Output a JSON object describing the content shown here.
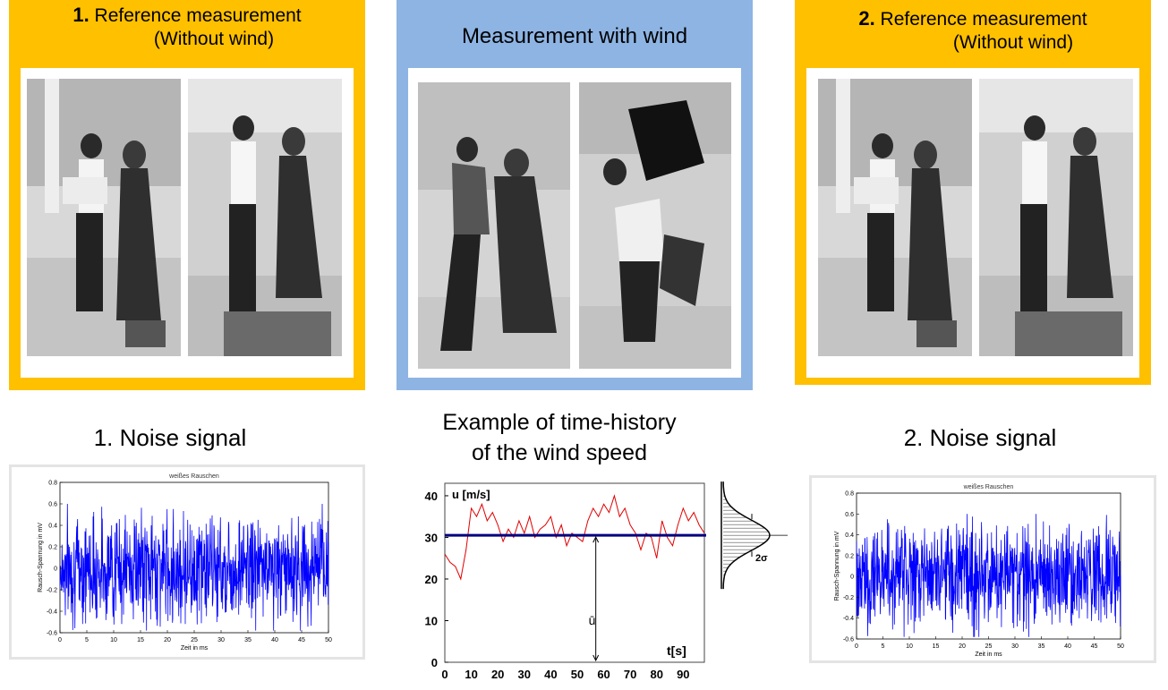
{
  "panels": {
    "left": {
      "number": "1.",
      "line1": "Reference measurement",
      "line2": "(Without wind)",
      "color": "#ffc000"
    },
    "middle": {
      "title": "Measurement with wind",
      "color": "#8eb4e3"
    },
    "right": {
      "number": "2.",
      "line1": "Reference measurement",
      "line2": "(Without wind)",
      "color": "#ffc000"
    }
  },
  "headings": {
    "noise1": "1. Noise signal",
    "wind_line1": "Example of time-history",
    "wind_line2": "of the wind speed",
    "noise2": "2. Noise signal"
  },
  "chart_data": [
    {
      "type": "line",
      "title": "weißes Rauschen",
      "xlabel": "Zeit in ms",
      "ylabel": "Rausch-Spannung in mV",
      "xlim": [
        0,
        50
      ],
      "ylim": [
        -0.6,
        0.8
      ],
      "xticks": [
        "0",
        "5",
        "10",
        "15",
        "20",
        "25",
        "30",
        "35",
        "40",
        "45",
        "50"
      ],
      "yticks": [
        "-0.6",
        "-0.4",
        "-0.2",
        "0",
        "0.2",
        "0.4",
        "0.6",
        "0.8"
      ],
      "series": [
        {
          "color": "#0000ff",
          "description": "white noise, mean 0, amplitude approx ±0.6 mV"
        }
      ]
    },
    {
      "type": "line",
      "ylabel": "u [m/s]",
      "xlabel": "t[s]",
      "xlim": [
        0,
        98
      ],
      "ylim": [
        0,
        43
      ],
      "xticks": [
        "0",
        "10",
        "20",
        "30",
        "40",
        "50",
        "60",
        "70",
        "80",
        "90"
      ],
      "yticks": [
        "0",
        "10",
        "20",
        "30",
        "40"
      ],
      "mean": 30.5,
      "mean_label": "ū",
      "sigma_label": "2σ",
      "series": [
        {
          "color": "#e00000",
          "x": [
            0,
            2,
            4,
            6,
            8,
            10,
            12,
            14,
            16,
            18,
            20,
            22,
            24,
            26,
            28,
            30,
            32,
            34,
            36,
            38,
            40,
            42,
            44,
            46,
            48,
            50,
            52,
            54,
            56,
            58,
            60,
            62,
            64,
            66,
            68,
            70,
            72,
            74,
            76,
            78,
            80,
            82,
            84,
            86,
            88,
            90,
            92,
            94,
            96,
            98
          ],
          "y": [
            26,
            24,
            23,
            20,
            27,
            37,
            35,
            38,
            34,
            36,
            33,
            29,
            32,
            30,
            34,
            31,
            35,
            30,
            32,
            33,
            35,
            30,
            33,
            28,
            31,
            30,
            29,
            34,
            37,
            35,
            38,
            36,
            40,
            35,
            37,
            33,
            31,
            27,
            31,
            30,
            25,
            34,
            30,
            28,
            33,
            37,
            34,
            36,
            33,
            31
          ]
        },
        {
          "color": "#000080",
          "x": [
            0,
            98
          ],
          "y": [
            30.5,
            30.5
          ]
        }
      ]
    },
    {
      "type": "line",
      "title": "weißes Rauschen",
      "xlabel": "Zeit in ms",
      "ylabel": "Rausch-Spannung in mV",
      "xlim": [
        0,
        50
      ],
      "ylim": [
        -0.6,
        0.8
      ],
      "xticks": [
        "0",
        "5",
        "10",
        "15",
        "20",
        "25",
        "30",
        "35",
        "40",
        "45",
        "50"
      ],
      "yticks": [
        "-0.6",
        "-0.4",
        "-0.2",
        "0",
        "0.2",
        "0.4",
        "0.6",
        "0.8"
      ],
      "series": [
        {
          "color": "#0000ff",
          "description": "white noise, mean 0, amplitude approx ±0.6 mV"
        }
      ]
    }
  ]
}
